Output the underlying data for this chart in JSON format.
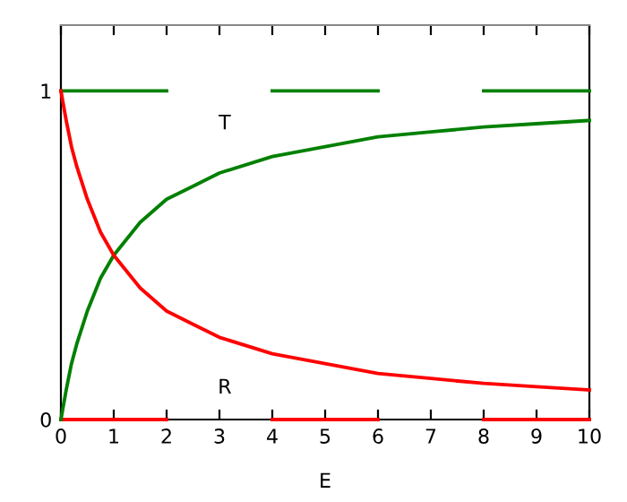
{
  "chart_data": {
    "type": "line",
    "xlabel": "E",
    "xlim": [
      0,
      10
    ],
    "ylim": [
      0,
      1.2
    ],
    "xticks": [
      0,
      1,
      2,
      3,
      4,
      5,
      6,
      7,
      8,
      9,
      10
    ],
    "yticks": [
      0,
      1
    ],
    "grid": false,
    "legend": false,
    "marker": "none",
    "annotations": [
      "T",
      "R"
    ],
    "series": [
      {
        "color": "#008000",
        "line_style": "solid",
        "x": [
          0,
          2,
          3,
          4,
          6,
          7,
          8,
          10
        ],
        "values": [
          1,
          1,
          null,
          1,
          1,
          null,
          1,
          1
        ]
      },
      {
        "color": "#ff0000",
        "line_style": "solid",
        "x": [
          0,
          2,
          3,
          4,
          6,
          7,
          8,
          10
        ],
        "values": [
          0,
          0,
          null,
          0,
          0,
          null,
          0,
          0
        ]
      },
      {
        "color": "#008000",
        "line_style": "solid",
        "x": [
          0,
          0.1,
          0.2,
          0.3,
          0.5,
          0.75,
          1,
          1.5,
          2,
          2.5,
          3,
          4,
          5,
          6,
          7,
          8,
          9,
          10
        ],
        "values": [
          0,
          0.09,
          0.17,
          0.23,
          0.33,
          0.43,
          0.5,
          0.6,
          0.67,
          0.71,
          0.75,
          0.8,
          0.83,
          0.86,
          0.875,
          0.89,
          0.9,
          0.91
        ]
      },
      {
        "color": "#ff0000",
        "line_style": "solid",
        "x": [
          0,
          0.1,
          0.2,
          0.3,
          0.5,
          0.75,
          1,
          1.5,
          2,
          2.5,
          3,
          4,
          5,
          6,
          7,
          8,
          9,
          10
        ],
        "values": [
          1,
          0.91,
          0.83,
          0.77,
          0.67,
          0.57,
          0.5,
          0.4,
          0.33,
          0.29,
          0.25,
          0.2,
          0.17,
          0.14,
          0.125,
          0.11,
          0.1,
          0.09
        ]
      }
    ]
  }
}
